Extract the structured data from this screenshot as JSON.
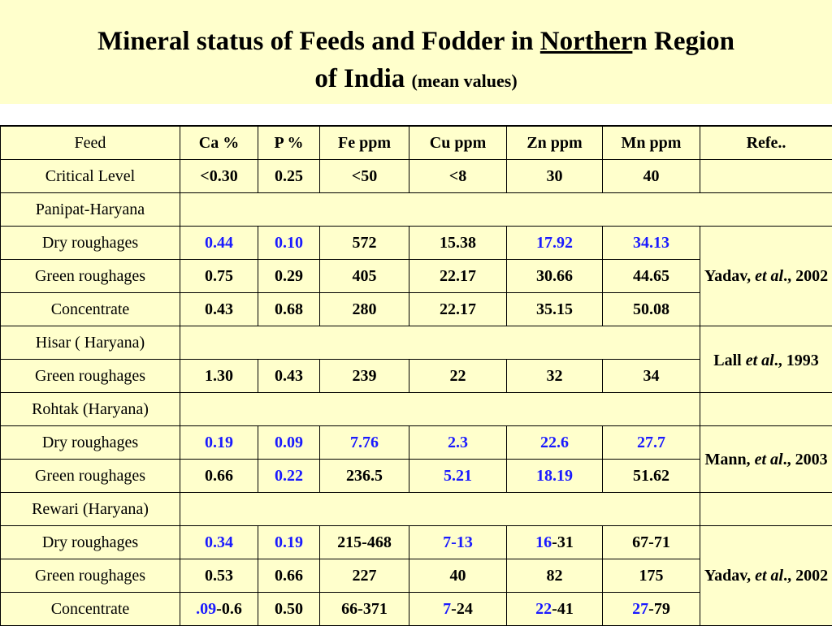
{
  "title": {
    "part1": "Mineral status of Feeds and Fodder in ",
    "underlined": "Norther",
    "part2": "n Region",
    "line2": "of India ",
    "small": "(mean values)"
  },
  "header": [
    "Feed",
    "Ca %",
    "P %",
    "Fe ppm",
    "Cu ppm",
    "Zn ppm",
    "Mn ppm",
    "Refe.."
  ],
  "critical": {
    "label": "Critical Level",
    "ca": "<0.30",
    "p": "0.25",
    "fe": "<50",
    "cu": "<8",
    "zn": "30",
    "mn": "40"
  },
  "groups": {
    "panipat": {
      "bold": "Panipat-Haryana"
    },
    "hisar": {
      "bold": "Hisar",
      "rest": " ( Haryana)"
    },
    "rohtak": {
      "bold": "Rohtak",
      "rest": " (Haryana)"
    },
    "rewari": {
      "bold": "Rewari",
      "rest": " (Haryana)"
    }
  },
  "refs": {
    "yadav1": {
      "name": "Yadav, ",
      "etal": "et al",
      "tail": "., 2002"
    },
    "lall": {
      "name": "Lall ",
      "etal": "et al",
      "tail": "., 1993"
    },
    "mann": {
      "name": "Mann, ",
      "etal": "et al",
      "tail": "., 2003"
    },
    "yadav2": {
      "name": "Yadav, ",
      "etal": "et al",
      "tail": "., 2002"
    }
  },
  "rows": {
    "p_dry": {
      "feed": "Dry roughages",
      "ca": "0.44",
      "p": "0.10",
      "fe": "572",
      "cu": "15.38",
      "zn": "17.92",
      "mn": "34.13"
    },
    "p_green": {
      "feed": "Green roughages",
      "ca": "0.75",
      "p": "0.29",
      "fe": "405",
      "cu": "22.17",
      "zn": "30.66",
      "mn": "44.65"
    },
    "p_conc": {
      "feed": "Concentrate",
      "ca": "0.43",
      "p": "0.68",
      "fe": "280",
      "cu": "22.17",
      "zn": "35.15",
      "mn": "50.08"
    },
    "h_green": {
      "feed": "Green roughages",
      "ca": "1.30",
      "p": "0.43",
      "fe": "239",
      "cu": "22",
      "zn": "32",
      "mn": "34"
    },
    "ro_dry": {
      "feed": "Dry roughages",
      "ca": "0.19",
      "p": "0.09",
      "fe": "7.76",
      "cu": "2.3",
      "zn": "22.6",
      "mn": "27.7"
    },
    "ro_green": {
      "feed": "Green roughages",
      "ca": "0.66",
      "p": "0.22",
      "fe": "236.5",
      "cu": "5.21",
      "zn": "18.19",
      "mn": "51.62"
    },
    "re_dry": {
      "feed": "Dry roughages",
      "ca": "0.34",
      "p": "0.19",
      "fe": "215-468",
      "cu": "7-13",
      "zn_a": "16",
      "zn_b": "-31",
      "mn": "67-71"
    },
    "re_green": {
      "feed": "Green roughages",
      "ca": "0.53",
      "p": "0.66",
      "fe": "227",
      "cu": "40",
      "zn": "82",
      "mn": "175"
    },
    "re_conc": {
      "feed": "Concentrate",
      "ca_a": ".09",
      "ca_b": "-0.6",
      "p": "0.50",
      "fe": "66-371",
      "cu_a": "7",
      "cu_b": "-24",
      "zn_a": "22",
      "zn_b": "-41",
      "mn_a": "27",
      "mn_b": "-79"
    }
  },
  "colors": {
    "highlight": "#1a1aff",
    "background": "#ffffcc"
  }
}
